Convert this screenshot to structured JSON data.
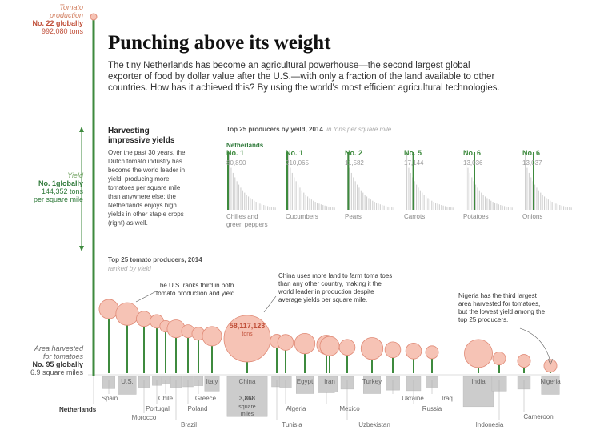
{
  "title": "Punching above its weight",
  "intro": "The tiny Netherlands has become an agricultural powerhouse—the second largest global exporter of food by dollar value after the U.S.—with only a fraction of the land available to other countries. How has it achieved this? By using the world's most efficient agricultural technologies.",
  "side": {
    "production": {
      "label1": "Tomato",
      "label2": "production",
      "rank": "No. 22 globally",
      "value": "992,080 tons"
    },
    "yield": {
      "label": "Yield",
      "rank": "No. 1globally",
      "value1": "144,352 tons",
      "value2": "per square mile"
    },
    "area": {
      "label1": "Area harvested",
      "label2": "for tomatoes",
      "rank": "No. 95 globally",
      "value": "6.9 square miles"
    }
  },
  "harvesting": {
    "heading1": "Harvesting",
    "heading2": "impressive yields",
    "text": "Over the past 30 years, the Dutch tomato industry has become the world leader in yield, producing more tomatoes per square mile than anywhere else; the Netherlands enjoys high yields in other staple crops (right) as well."
  },
  "yield_chart": {
    "heading": "Top 25 producers by yeild, 2014",
    "unit": "in tons per square mile",
    "country": "Netherlands"
  },
  "tomato_chart": {
    "heading": "Top 25 tomato producers, 2014",
    "subheading": "ranked by yield"
  },
  "notes": {
    "us": "The U.S. ranks third in both tomato production and yield.",
    "china": "China uses more land to farm toma toes than any other country, making it the world leader in production despite average yields per square mile.",
    "nigeria": "Nigeria has the third largest area harvested for tomatoes, but the lowest yield among the top 25 producers.",
    "china_prod": "58,117,123",
    "china_prod_unit": "tons",
    "china_area": "3,868",
    "china_area_unit1": "square",
    "china_area_unit2": "miles"
  },
  "colors": {
    "green": "#3d8a3d",
    "pink": "#f6c3b5",
    "pink_stroke": "#e08a76",
    "grey": "#c8c8c8",
    "red": "#c0503a"
  },
  "chart_data": [
    {
      "type": "bar",
      "title": "Top 25 producers by yeild, 2014",
      "unit": "in tons per square mile",
      "series": [
        {
          "name": "Chilies and green peppers",
          "rank": "No. 1",
          "value": 80890
        },
        {
          "name": "Cucumbers",
          "rank": "No. 1",
          "value": 210065
        },
        {
          "name": "Pears",
          "rank": "No. 2",
          "value": 11582
        },
        {
          "name": "Carrots",
          "rank": "No. 5",
          "value": 17144
        },
        {
          "name": "Potatoes",
          "rank": "No. 6",
          "value": 13036
        },
        {
          "name": "Onions",
          "rank": "No. 6",
          "value": 13037
        }
      ],
      "display_values": [
        "80,890",
        "210,065",
        "11,582",
        "17,144",
        "13,036",
        "13,037"
      ],
      "labels": [
        "Chilies and\ngreen peppers",
        "Cucumbers",
        "Pears",
        "Carrots",
        "Potatoes",
        "Onions"
      ]
    },
    {
      "type": "scatter",
      "title": "Top 25 tomato producers, 2014",
      "subtitle": "ranked by yield",
      "countries": [
        "Netherlands",
        "Spain",
        "U.S.",
        "Morocco",
        "Portugal",
        "Chile",
        "Brazil",
        "Poland",
        "Greece",
        "Italy",
        "China",
        "Tunisia",
        "Algeria",
        "Egypt",
        "Mexico",
        "Iran",
        "Uzbekistan",
        "Turkey",
        "Ukraine",
        "Russia",
        "Iraq",
        "India",
        "Indonesia",
        "Cameroon",
        "Nigeria"
      ],
      "yield_rel": [
        1.0,
        0.26,
        0.24,
        0.22,
        0.21,
        0.19,
        0.18,
        0.17,
        0.16,
        0.15,
        0.14,
        0.13,
        0.125,
        0.12,
        0.115,
        0.11,
        0.105,
        0.1,
        0.095,
        0.09,
        0.085,
        0.08,
        0.06,
        0.05,
        0.03
      ],
      "production_rel": [
        0.05,
        0.45,
        0.62,
        0.28,
        0.22,
        0.16,
        0.38,
        0.2,
        0.2,
        0.45,
        2.6,
        0.22,
        0.3,
        0.5,
        0.45,
        0.45,
        0.3,
        0.58,
        0.3,
        0.3,
        0.2,
        0.95,
        0.2,
        0.2,
        0.2
      ],
      "area_rel": [
        0.01,
        0.28,
        0.6,
        0.22,
        0.15,
        0.1,
        0.22,
        0.2,
        0.16,
        0.4,
        3.0,
        0.2,
        0.25,
        0.55,
        0.5,
        0.45,
        0.3,
        0.55,
        0.35,
        0.38,
        0.25,
        1.7,
        0.4,
        0.3,
        0.6
      ],
      "label_pos": [
        "below",
        "below",
        "in",
        "below",
        "below",
        "below",
        "below",
        "below",
        "below",
        "in",
        "in",
        "below",
        "below",
        "in",
        "below",
        "in",
        "below",
        "in",
        "below",
        "below",
        "below",
        "in",
        "below",
        "below",
        "in"
      ]
    }
  ]
}
